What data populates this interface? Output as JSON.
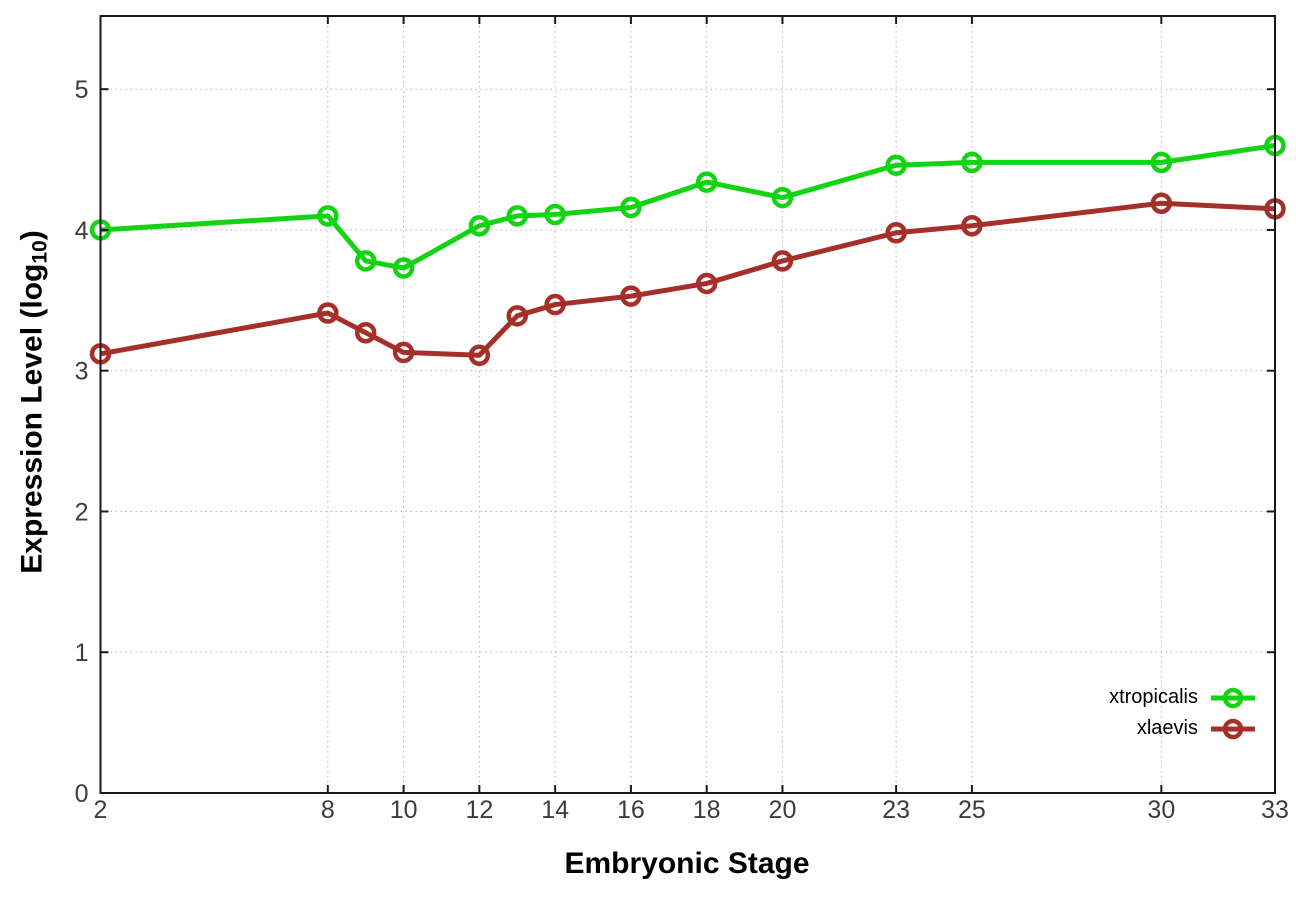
{
  "chart_data": {
    "type": "line",
    "title": "",
    "xlabel": "Embryonic Stage",
    "ylabel": "Expression Level (log10)",
    "ylabel_parts": {
      "prefix": "Expression Level (log",
      "sub": "10",
      "suffix": ")"
    },
    "x": [
      2,
      8,
      9,
      10,
      12,
      13,
      14,
      16,
      18,
      20,
      23,
      25,
      30,
      33
    ],
    "x_ticks": [
      2,
      8,
      10,
      12,
      14,
      16,
      18,
      20,
      23,
      25,
      30,
      33
    ],
    "x_tick_labels": [
      "2",
      "8",
      "10",
      "12",
      "14",
      "16",
      "18",
      "20",
      "23",
      "25",
      "30",
      "33"
    ],
    "y_ticks": [
      0,
      1,
      2,
      3,
      4,
      5
    ],
    "y_tick_labels": [
      "0",
      "1",
      "2",
      "3",
      "4",
      "5"
    ],
    "xlim": [
      2,
      33
    ],
    "ylim": [
      0,
      5.52
    ],
    "grid": true,
    "legend_position": "inside-bottom-right",
    "series": [
      {
        "name": "xtropicalis",
        "color": "#12d412",
        "values": [
          4.0,
          4.1,
          3.78,
          3.73,
          4.03,
          4.1,
          4.11,
          4.16,
          4.34,
          4.23,
          4.46,
          4.48,
          4.48,
          4.6
        ]
      },
      {
        "name": "xlaevis",
        "color": "#a62f2a",
        "values": [
          3.12,
          3.41,
          3.27,
          3.13,
          3.11,
          3.39,
          3.47,
          3.53,
          3.62,
          3.78,
          3.98,
          4.03,
          4.19,
          4.15
        ]
      }
    ]
  },
  "colors": {
    "background": "#ffffff",
    "axis": "#1a1a1a",
    "grid": "#b4b4b4",
    "tick_text": "#3c3c3c"
  }
}
